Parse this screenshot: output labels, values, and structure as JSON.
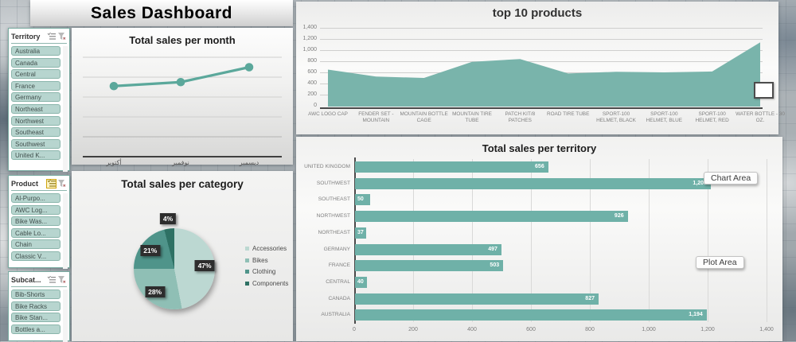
{
  "title": "Sales Dashboard",
  "colors": {
    "accent": "#54a296",
    "series": "#6fb1a8",
    "area_fill": "#79b4ab",
    "line": "#5ba89b",
    "pie": [
      "#bcd8d2",
      "#8fbfb5",
      "#4f948a",
      "#2e7164"
    ],
    "label_box": "#2d2d2d",
    "slicer_item_bg": "#b7d5cf"
  },
  "slicers": [
    {
      "name": "Territory",
      "items": [
        "Australia",
        "Canada",
        "Central",
        "France",
        "Germany",
        "Northeast",
        "Northwest",
        "Southeast",
        "Southwest",
        "United K..."
      ]
    },
    {
      "name": "Product",
      "items": [
        "Al-Purpo...",
        "AWC Log...",
        "Bike Was...",
        "Cable Lo...",
        "Chain",
        "Classic V..."
      ]
    },
    {
      "name": "Subcat...",
      "items": [
        "Bib-Shorts",
        "Bike Racks",
        "Bike Stan...",
        "Bottles a..."
      ]
    }
  ],
  "chart_data": [
    {
      "id": "monthly",
      "type": "line",
      "title": "Total sales per month",
      "categories": [
        "أكتوبر",
        "نوفمبر",
        "ديسمبر"
      ],
      "values_relative_pct": [
        71,
        75,
        90
      ],
      "ylabels_shown": false,
      "grid": true
    },
    {
      "id": "top10",
      "type": "area",
      "title": "top 10 products",
      "categories": [
        "AWC LOGO CAP",
        "FENDER SET - MOUNTAIN",
        "MOUNTAIN BOTTLE CAGE",
        "MOUNTAIN TIRE TUBE",
        "PATCH KIT/8 PATCHES",
        "ROAD TIRE TUBE",
        "SPORT-100 HELMET, BLACK",
        "SPORT-100 HELMET, BLUE",
        "SPORT-100 HELMET, RED",
        "WATER BOTTLE - 30 OZ."
      ],
      "values": [
        650,
        525,
        500,
        790,
        840,
        580,
        610,
        600,
        615,
        1140
      ],
      "ylim": [
        0,
        1400
      ],
      "yticks": [
        "0",
        "200",
        "400",
        "600",
        "800",
        "1,000",
        "1,200",
        "1,400"
      ],
      "grid": true
    },
    {
      "id": "category",
      "type": "pie",
      "title": "Total sales per category",
      "labels": [
        "Accessories",
        "Bikes",
        "Clothing",
        "Components"
      ],
      "values_pct": [
        47,
        28,
        21,
        4
      ],
      "pct_labels": [
        "47%",
        "28%",
        "21%",
        "4%"
      ],
      "legend_position": "right"
    },
    {
      "id": "territory",
      "type": "bar",
      "title": "Total sales per territory",
      "categories": [
        "UNITED KINGDOM",
        "SOUTHWEST",
        "SOUTHEAST",
        "NORTHWEST",
        "NORTHEAST",
        "GERMANY",
        "FRANCE",
        "CENTRAL",
        "CANADA",
        "AUSTRALIA"
      ],
      "values": [
        656,
        1208,
        50,
        926,
        37,
        497,
        503,
        40,
        827,
        1194
      ],
      "value_labels": [
        "656",
        "1,208",
        "50",
        "926",
        "37",
        "497",
        "503",
        "40",
        "827",
        "1,194"
      ],
      "xlim": [
        0,
        1400
      ],
      "xticks": [
        "0",
        "200",
        "400",
        "600",
        "800",
        "1,000",
        "1,200",
        "1,400"
      ],
      "grid": true
    }
  ],
  "overlays": {
    "chart_area_label": "Chart Area",
    "plot_area_label": "Plot Area"
  }
}
